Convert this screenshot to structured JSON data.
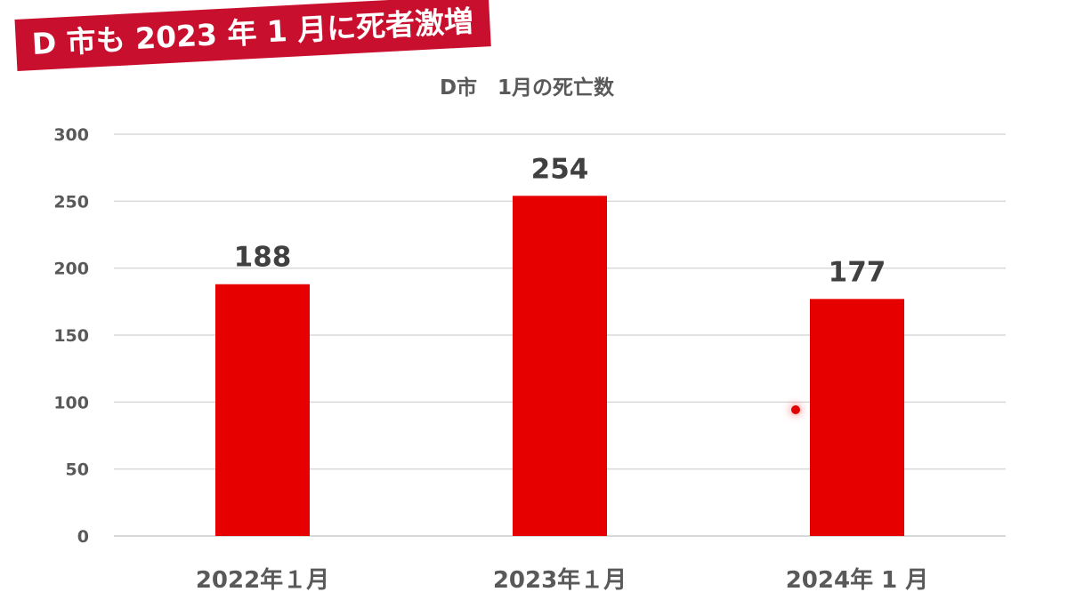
{
  "banner": {
    "text": "D 市も 2023 年 1 月に死者激増"
  },
  "chart_data": {
    "type": "bar",
    "title": "D市　1月の死亡数",
    "categories": [
      "2022年１月",
      "2023年１月",
      "2024年 1 月"
    ],
    "values": [
      188,
      254,
      177
    ],
    "data_labels": [
      "188",
      "254",
      "177"
    ],
    "ylim": [
      0,
      300
    ],
    "yticks": [
      0,
      50,
      100,
      150,
      200,
      250,
      300
    ],
    "grid": true,
    "bar_color": "#e60000",
    "grid_color": "#d9d9d9",
    "tick_color": "#595959",
    "data_label_color": "#404040"
  }
}
